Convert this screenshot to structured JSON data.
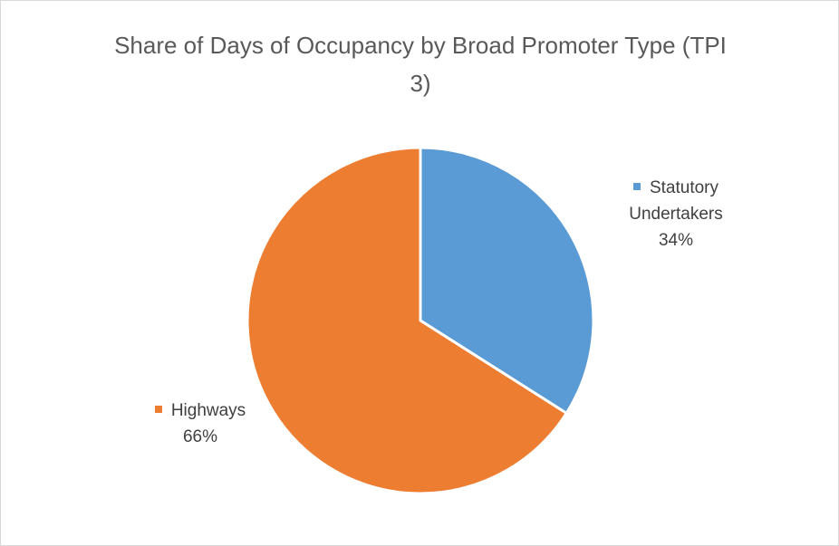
{
  "chart_data": {
    "type": "pie",
    "title": "Share of Days of Occupancy by Broad Promoter Type (TPI 3)",
    "categories": [
      "Statutory Undertakers",
      "Highways"
    ],
    "values": [
      34,
      66
    ],
    "value_labels": [
      "34%",
      "66%"
    ],
    "colors": [
      "#5b9bd5",
      "#ed7d31"
    ]
  }
}
